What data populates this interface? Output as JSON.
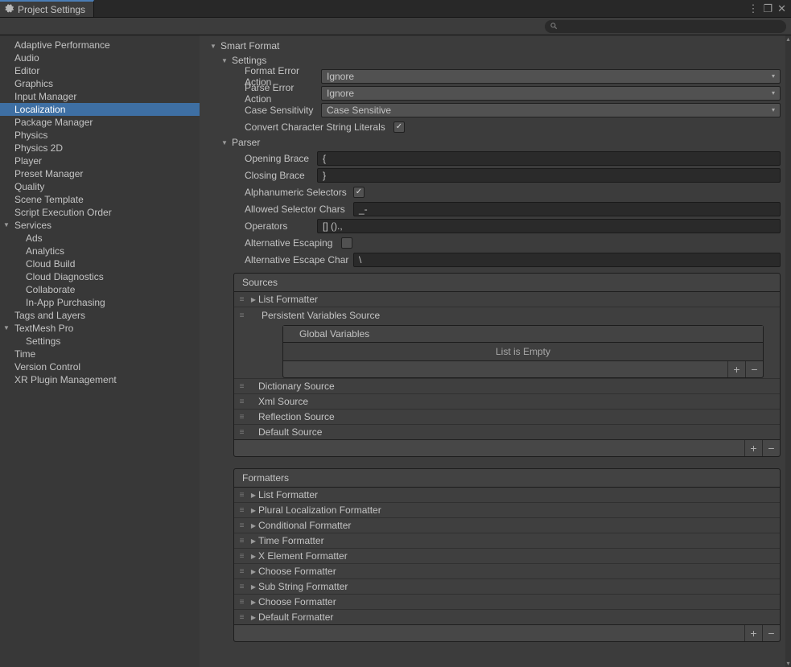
{
  "window": {
    "title": "Project Settings"
  },
  "sidebar": {
    "items": [
      {
        "label": "Adaptive Performance",
        "indent": 0
      },
      {
        "label": "Audio",
        "indent": 0
      },
      {
        "label": "Editor",
        "indent": 0
      },
      {
        "label": "Graphics",
        "indent": 0
      },
      {
        "label": "Input Manager",
        "indent": 0
      },
      {
        "label": "Localization",
        "indent": 0,
        "selected": true
      },
      {
        "label": "Package Manager",
        "indent": 0
      },
      {
        "label": "Physics",
        "indent": 0
      },
      {
        "label": "Physics 2D",
        "indent": 0
      },
      {
        "label": "Player",
        "indent": 0
      },
      {
        "label": "Preset Manager",
        "indent": 0
      },
      {
        "label": "Quality",
        "indent": 0
      },
      {
        "label": "Scene Template",
        "indent": 0
      },
      {
        "label": "Script Execution Order",
        "indent": 0
      },
      {
        "label": "Services",
        "indent": 0,
        "fold": "down"
      },
      {
        "label": "Ads",
        "indent": 1
      },
      {
        "label": "Analytics",
        "indent": 1
      },
      {
        "label": "Cloud Build",
        "indent": 1
      },
      {
        "label": "Cloud Diagnostics",
        "indent": 1
      },
      {
        "label": "Collaborate",
        "indent": 1
      },
      {
        "label": "In-App Purchasing",
        "indent": 1
      },
      {
        "label": "Tags and Layers",
        "indent": 0
      },
      {
        "label": "TextMesh Pro",
        "indent": 0,
        "fold": "down"
      },
      {
        "label": "Settings",
        "indent": 1
      },
      {
        "label": "Time",
        "indent": 0
      },
      {
        "label": "Version Control",
        "indent": 0
      },
      {
        "label": "XR Plugin Management",
        "indent": 0
      }
    ]
  },
  "smartformat": {
    "title": "Smart Format",
    "settings": {
      "title": "Settings",
      "format_error_label": "Format Error Action",
      "format_error_value": "Ignore",
      "parse_error_label": "Parse Error Action",
      "parse_error_value": "Ignore",
      "case_label": "Case Sensitivity",
      "case_value": "Case Sensitive",
      "convert_label": "Convert Character String Literals",
      "convert_checked": true
    },
    "parser": {
      "title": "Parser",
      "open_label": "Opening Brace",
      "open_value": "{",
      "close_label": "Closing Brace",
      "close_value": "}",
      "alnum_label": "Alphanumeric Selectors",
      "alnum_checked": true,
      "allowed_label": "Allowed Selector Chars",
      "allowed_value": "_-",
      "ops_label": "Operators",
      "ops_value": "[] ().,",
      "altesc_label": "Alternative Escaping",
      "altesc_checked": false,
      "altchar_label": "Alternative Escape Char",
      "altchar_value": "\\"
    }
  },
  "sources": {
    "title": "Sources",
    "items": [
      {
        "label": "List Formatter",
        "tri": true,
        "expanded": true
      },
      {
        "label": "Dictionary Source"
      },
      {
        "label": "Xml Source"
      },
      {
        "label": "Reflection Source"
      },
      {
        "label": "Default Source"
      }
    ],
    "pv_title": "Persistent Variables Source",
    "gv_title": "Global Variables",
    "empty": "List is Empty"
  },
  "formatters": {
    "title": "Formatters",
    "items": [
      {
        "label": "List Formatter"
      },
      {
        "label": "Plural Localization Formatter"
      },
      {
        "label": "Conditional Formatter"
      },
      {
        "label": "Time Formatter"
      },
      {
        "label": "X Element Formatter"
      },
      {
        "label": "Choose Formatter"
      },
      {
        "label": "Sub String Formatter"
      },
      {
        "label": "Choose Formatter"
      },
      {
        "label": "Default Formatter"
      }
    ]
  },
  "colors": {
    "bg": "#3c3c3c",
    "panel": "#3f3f3f",
    "input": "#2a2a2a",
    "dropdown": "#515151",
    "selection": "#3e6fa3",
    "accent": "#4a7db5"
  }
}
